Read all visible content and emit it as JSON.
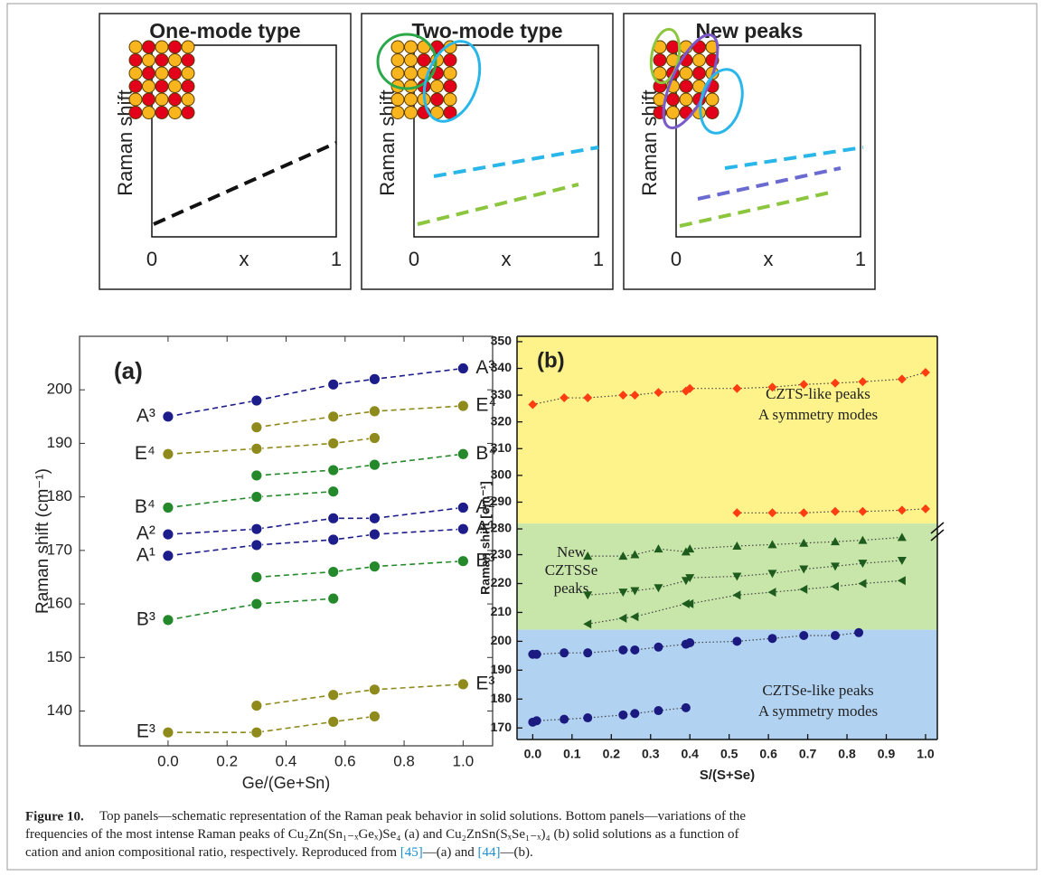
{
  "schematics": [
    {
      "title": "One-mode type",
      "ylabel": "Raman shift",
      "xticks": [
        "0",
        "x",
        "1"
      ]
    },
    {
      "title": "Two-mode type",
      "ylabel": "Raman shift",
      "xticks": [
        "0",
        "x",
        "1"
      ]
    },
    {
      "title": "New peaks",
      "ylabel": "Raman shift",
      "xticks": [
        "0",
        "x",
        "1"
      ]
    }
  ],
  "chart_data": [
    {
      "type": "line",
      "label": "(a)",
      "xlabel": "Ge/(Ge+Sn)",
      "ylabel": "Raman shift (cm⁻¹)",
      "x": [
        0,
        0.3,
        0.56,
        0.7,
        1.0
      ],
      "xlim": [
        -0.3,
        1.1
      ],
      "ylim": [
        133.5,
        210
      ],
      "xticks": [
        {
          "value": 0,
          "label": "0.0"
        },
        {
          "value": 0.2,
          "label": "0.2"
        },
        {
          "value": 0.4,
          "label": "0.4"
        },
        {
          "value": 0.6,
          "label": "0.6"
        },
        {
          "value": 0.8,
          "label": "0.8"
        },
        {
          "value": 1,
          "label": "1.0"
        }
      ],
      "yticks": [
        140,
        150,
        160,
        170,
        180,
        190,
        200
      ],
      "series": [
        {
          "name": "A³",
          "color": "#1c1c8a",
          "values": [
            195,
            198,
            201,
            202,
            204
          ]
        },
        {
          "name": "E⁴",
          "color": "#8f8a1c",
          "values": [
            null,
            193,
            195,
            196,
            197
          ]
        },
        {
          "name": "E⁴",
          "color": "#8f8a1c",
          "values": [
            188,
            189,
            190,
            191,
            null
          ]
        },
        {
          "name": "B⁴",
          "color": "#24892a",
          "values": [
            null,
            184,
            185,
            186,
            188
          ]
        },
        {
          "name": "B⁴",
          "color": "#24892a",
          "values": [
            178,
            180,
            181,
            null,
            null
          ]
        },
        {
          "name": "A²",
          "color": "#1c1c8a",
          "values": [
            173,
            174,
            176,
            176,
            178
          ]
        },
        {
          "name": "A¹",
          "color": "#1c1c8a",
          "values": [
            169,
            171,
            172,
            173,
            174
          ]
        },
        {
          "name": "B³",
          "color": "#24892a",
          "values": [
            null,
            165,
            166,
            167,
            168
          ]
        },
        {
          "name": "B³",
          "color": "#24892a",
          "values": [
            157,
            160,
            161,
            null,
            null
          ]
        },
        {
          "name": "E³",
          "color": "#8f8a1c",
          "values": [
            null,
            141,
            143,
            144,
            145
          ]
        },
        {
          "name": "E³",
          "color": "#8f8a1c",
          "values": [
            136,
            136,
            138,
            139,
            null
          ]
        }
      ]
    },
    {
      "type": "scatter",
      "label": "(b)",
      "xlabel": "S/(S+Se)",
      "ylabel": "Raman shift [cm⁻¹]",
      "xlim": [
        -0.04,
        1.03
      ],
      "xticks": [
        {
          "value": 0,
          "label": "0.0"
        },
        {
          "value": 0.1,
          "label": "0.1"
        },
        {
          "value": 0.2,
          "label": "0.2"
        },
        {
          "value": 0.3,
          "label": "0.3"
        },
        {
          "value": 0.4,
          "label": "0.4"
        },
        {
          "value": 0.5,
          "label": "0.5"
        },
        {
          "value": 0.6,
          "label": "0.6"
        },
        {
          "value": 0.7,
          "label": "0.7"
        },
        {
          "value": 0.8,
          "label": "0.8"
        },
        {
          "value": 0.9,
          "label": "0.9"
        },
        {
          "value": 1,
          "label": "1.0"
        }
      ],
      "segments": [
        {
          "ylim": [
            279,
            352
          ],
          "yticks": [
            280,
            290,
            300,
            310,
            320,
            330,
            340,
            350
          ],
          "bands": [
            {
              "range": [
                282,
                352
              ],
              "color": "#fef28a"
            },
            {
              "range": [
                279,
                282
              ],
              "color": "#c8e6aa"
            }
          ],
          "annotations": [
            {
              "text": "CZTS-like peaks",
              "color": "#ff5a1f"
            },
            {
              "text": "A symmetry modes",
              "color": "#ff5a1f"
            }
          ],
          "series": [
            {
              "marker": "diamond",
              "color": "#ff3d10",
              "x": [
                0,
                0.08,
                0.14,
                0.23,
                0.26,
                0.32,
                0.39,
                0.4,
                0.52,
                0.61,
                0.69,
                0.77,
                0.84,
                0.94,
                1.0
              ],
              "values": [
                326.5,
                329,
                329,
                330,
                330,
                331,
                331.5,
                332.5,
                332.5,
                333,
                334,
                334.5,
                335,
                336,
                338.5
              ]
            },
            {
              "marker": "diamond",
              "color": "#ff3d10",
              "x": [
                0.52,
                0.61,
                0.69,
                0.77,
                0.84,
                0.94,
                1.0
              ],
              "values": [
                286,
                286,
                286,
                286.5,
                286.5,
                287,
                287.5
              ]
            }
          ]
        },
        {
          "ylim": [
            166,
            238
          ],
          "yticks": [
            170,
            180,
            190,
            200,
            210,
            220,
            230
          ],
          "bands": [
            {
              "range": [
                204,
                238
              ],
              "color": "#c8e6aa"
            },
            {
              "range": [
                166,
                204
              ],
              "color": "#b2d2f2"
            }
          ],
          "annotations": [
            {
              "text": "New",
              "color": "#1e4d1e"
            },
            {
              "text": "CZTSSe",
              "color": "#1e4d1e"
            },
            {
              "text": "peaks",
              "color": "#1e4d1e"
            },
            {
              "text": "CZTSe-like peaks",
              "color": "#1c2c8a"
            },
            {
              "text": "A symmetry modes",
              "color": "#1c2c8a"
            }
          ],
          "series": [
            {
              "marker": "triangle-up",
              "color": "#1d5c1d",
              "x": [
                0.14,
                0.23,
                0.26,
                0.32,
                0.39,
                0.4,
                0.52,
                0.61,
                0.69,
                0.77,
                0.84,
                0.94
              ],
              "values": [
                229.5,
                229.5,
                230,
                232,
                231,
                232,
                233,
                233.5,
                234,
                234.5,
                235,
                236
              ]
            },
            {
              "marker": "triangle-down",
              "color": "#1d5c1d",
              "x": [
                0.14,
                0.23,
                0.26,
                0.32,
                0.39,
                0.4,
                0.52,
                0.61,
                0.69,
                0.77,
                0.84,
                0.94
              ],
              "values": [
                216,
                217,
                217.5,
                218.5,
                221,
                222,
                222.5,
                223.5,
                225,
                226,
                227,
                228
              ]
            },
            {
              "marker": "triangle-left",
              "color": "#1d5c1d",
              "x": [
                0.14,
                0.23,
                0.26,
                0.39,
                0.4,
                0.52,
                0.61,
                0.69,
                0.77,
                0.84,
                0.94
              ],
              "values": [
                206,
                208,
                208.5,
                213,
                213,
                216,
                217,
                218,
                219,
                220,
                221
              ]
            },
            {
              "marker": "circle",
              "color": "#1a1a80",
              "x": [
                0,
                0.01,
                0.08,
                0.14,
                0.23,
                0.26,
                0.32,
                0.39,
                0.4,
                0.52,
                0.61,
                0.69,
                0.77,
                0.83
              ],
              "values": [
                195.5,
                195.5,
                196,
                196,
                197,
                197,
                198,
                199,
                199.5,
                200,
                201,
                202,
                202,
                203
              ]
            },
            {
              "marker": "circle",
              "color": "#1a1a80",
              "x": [
                0,
                0.01,
                0.08,
                0.14,
                0.23,
                0.26,
                0.32,
                0.39
              ],
              "values": [
                172,
                172.5,
                173,
                173.5,
                174.5,
                175,
                176,
                177
              ]
            }
          ]
        }
      ]
    }
  ],
  "caption": {
    "label": "Figure 10.",
    "lines": [
      "Top panels—schematic representation of the Raman peak behavior in solid solutions. Bottom panels—variations of the",
      "frequencies of the most intense Raman peaks of Cu₂Zn(Sn₁₋ₓGeₓ)Se₄ (a) and Cu₂ZnSn(SₓSe₁₋ₓ)₄ (b) solid solutions as a function of",
      "cation and anion compositional ratio, respectively. Reproduced from [45]—(a) and [44]—(b)."
    ]
  }
}
